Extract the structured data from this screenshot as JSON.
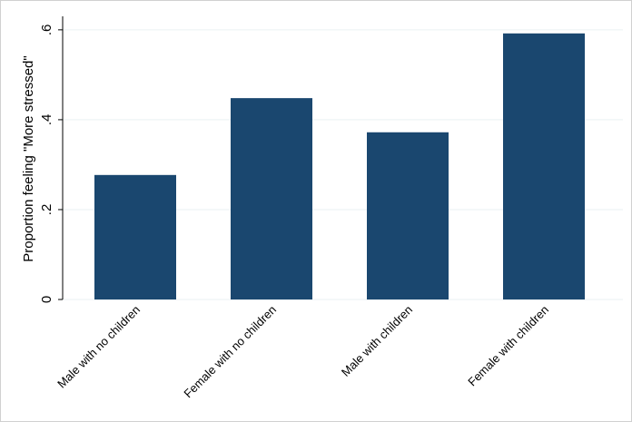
{
  "chart_data": {
    "type": "bar",
    "y_label": "Proportion feeling \"More stressed\"",
    "categories": [
      "Male with no children",
      "Female with no children",
      "Male with children",
      "Female with children"
    ],
    "values": [
      0.277,
      0.448,
      0.372,
      0.592
    ],
    "color": "#1a476f",
    "ylim": [
      0,
      0.63
    ],
    "yticks": [
      0,
      {
        "value": 0.2,
        "label": ".2"
      },
      {
        "value": 0.4,
        "label": ".4"
      },
      {
        "value": 0.6,
        "label": ".6"
      }
    ],
    "grid": true
  }
}
